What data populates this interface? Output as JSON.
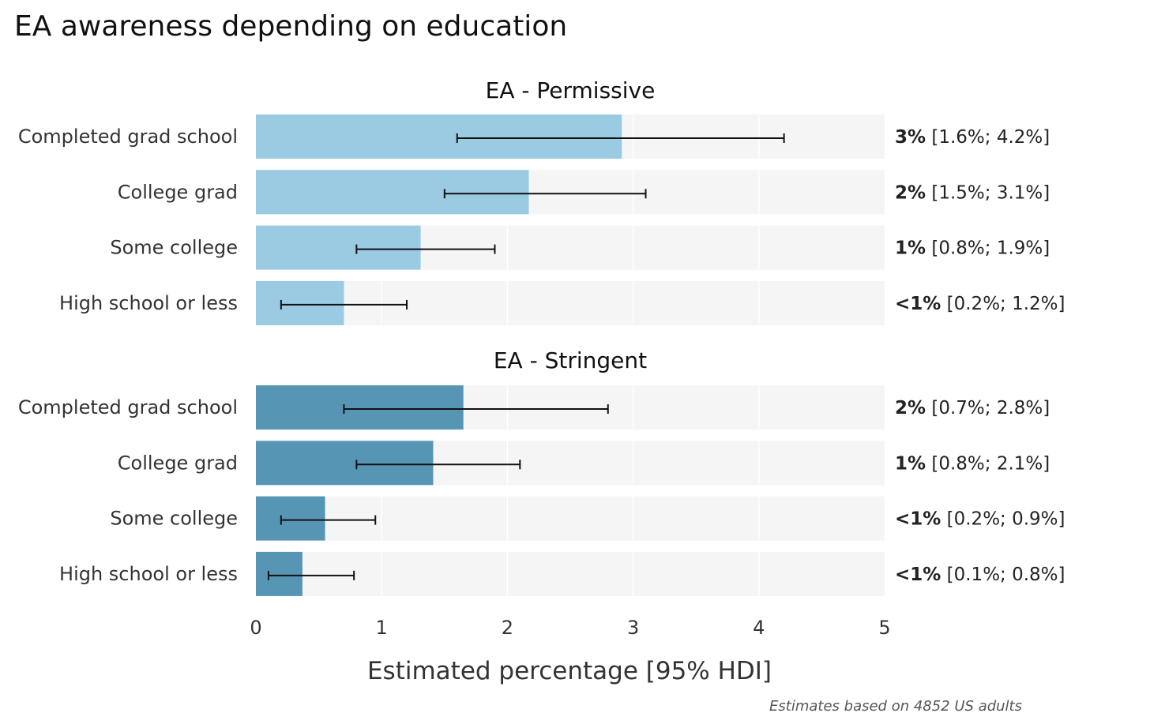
{
  "chart_data": {
    "type": "bar",
    "orientation": "horizontal",
    "title": "EA awareness depending on education",
    "xlabel": "Estimated percentage [95% HDI]",
    "xlim": [
      0,
      5
    ],
    "xticks": [
      0,
      1,
      2,
      3,
      4,
      5
    ],
    "caption": "Estimates based on 4852 US adults",
    "categories": [
      "Completed grad school",
      "College grad",
      "Some college",
      "High school or less"
    ],
    "panels": [
      {
        "name": "EA - Permissive",
        "color": "#9bcbe3",
        "rows": [
          {
            "category": "Completed grad school",
            "value": 2.91,
            "ci": [
              1.6,
              4.2
            ],
            "label_bold": "3%",
            "label_ci": "[1.6%; 4.2%]"
          },
          {
            "category": "College grad",
            "value": 2.17,
            "ci": [
              1.5,
              3.1
            ],
            "label_bold": "2%",
            "label_ci": "[1.5%; 3.1%]"
          },
          {
            "category": "Some college",
            "value": 1.31,
            "ci": [
              0.8,
              1.9
            ],
            "label_bold": "1%",
            "label_ci": "[0.8%; 1.9%]"
          },
          {
            "category": "High school or less",
            "value": 0.7,
            "ci": [
              0.2,
              1.2
            ],
            "label_bold": "<1%",
            "label_ci": "[0.2%; 1.2%]"
          }
        ]
      },
      {
        "name": "EA - Stringent",
        "color": "#5795b5",
        "rows": [
          {
            "category": "Completed grad school",
            "value": 1.65,
            "ci": [
              0.7,
              2.8
            ],
            "label_bold": "2%",
            "label_ci": "[0.7%; 2.8%]"
          },
          {
            "category": "College grad",
            "value": 1.41,
            "ci": [
              0.8,
              2.1
            ],
            "label_bold": "1%",
            "label_ci": "[0.8%; 2.1%]"
          },
          {
            "category": "Some college",
            "value": 0.55,
            "ci": [
              0.2,
              0.95
            ],
            "label_bold": "<1%",
            "label_ci": "[0.2%; 0.9%]"
          },
          {
            "category": "High school or less",
            "value": 0.37,
            "ci": [
              0.1,
              0.78
            ],
            "label_bold": "<1%",
            "label_ci": "[0.1%; 0.8%]"
          }
        ]
      }
    ],
    "colors": {
      "band": "#f5f5f5",
      "grid": "#ffffff",
      "errorbar": "#111111"
    }
  }
}
